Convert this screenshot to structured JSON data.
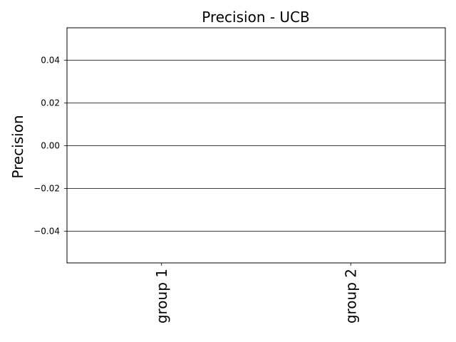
{
  "chart_data": {
    "type": "bar",
    "title": "Precision - UCB",
    "xlabel": "",
    "ylabel": "Precision",
    "categories": [
      "group 1",
      "group 2"
    ],
    "series": [
      {
        "values": [
          0,
          0
        ]
      }
    ],
    "ylim": [
      -0.055,
      0.055
    ],
    "yticks": [
      0.04,
      0.02,
      0.0,
      -0.02,
      -0.04
    ],
    "ytick_labels": [
      "0.04",
      "0.02",
      "0.00",
      "−0.02",
      "−0.04"
    ],
    "grid": "horizontal",
    "xtick_rotation": "vertical",
    "colors": {
      "grid": "#000000",
      "axis": "#000000",
      "background": "#ffffff"
    }
  }
}
